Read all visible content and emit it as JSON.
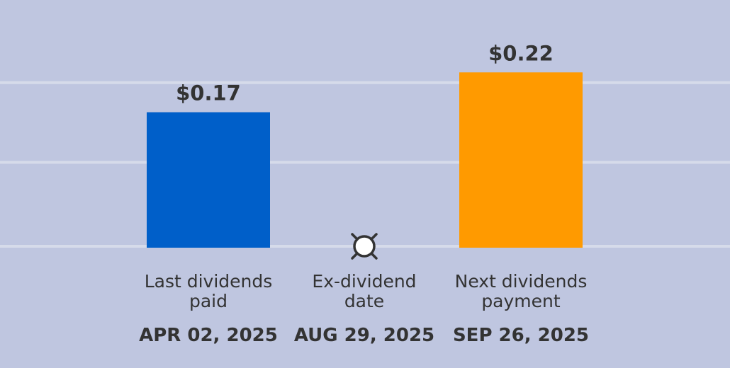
{
  "chart_data": {
    "type": "bar",
    "categories": [
      {
        "line1": "Last dividends",
        "line2": "paid"
      },
      {
        "line1": "Ex-dividend",
        "line2": "date"
      },
      {
        "line1": "Next dividends",
        "line2": "payment"
      }
    ],
    "dates": [
      "APR 02, 2025",
      "AUG 29, 2025",
      "SEP 26, 2025"
    ],
    "values": [
      0.17,
      null,
      0.22
    ],
    "value_labels": [
      "$0.17",
      "",
      "$0.22"
    ],
    "ylim": [
      0,
      0.3
    ],
    "grid": true,
    "marker": {
      "category_index": 1,
      "icon": "ex-dividend-marker-icon"
    }
  },
  "colors": {
    "background": "#bfc6e0",
    "grid": "#d6dbea",
    "bars": [
      "#005fc9",
      null,
      "#ff9a00"
    ],
    "text": "#333333",
    "marker_fill": "#ffffff",
    "marker_stroke": "#333333"
  }
}
